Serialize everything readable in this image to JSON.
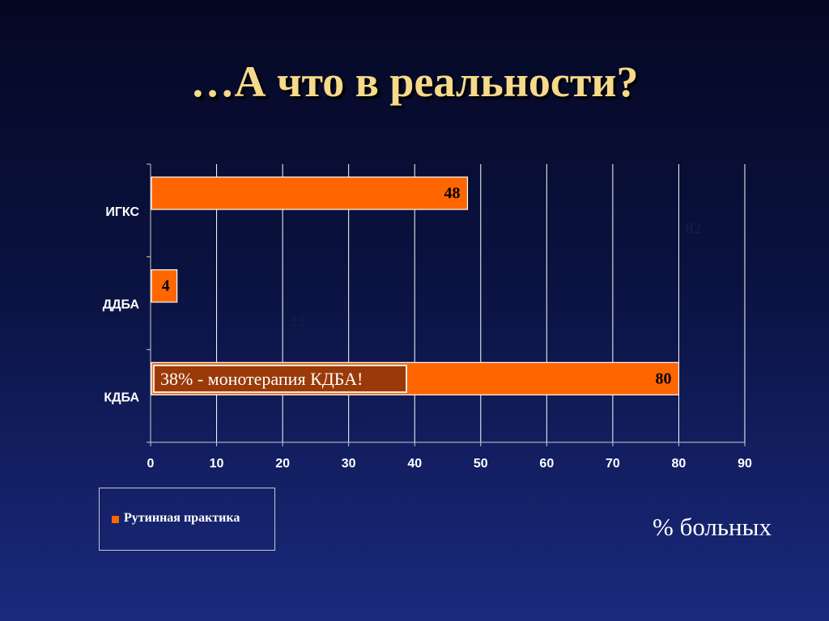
{
  "title": "…А что в реальности?",
  "chart_data": {
    "type": "bar",
    "orientation": "horizontal",
    "categories": [
      "ИГКС",
      "ДДБА",
      "КДБА"
    ],
    "series": [
      {
        "name": "Рутинная практика",
        "values": [
          48,
          4,
          80
        ],
        "color": "#ff6600"
      }
    ],
    "hidden_values": [
      82,
      22,
      31
    ],
    "xlim": [
      0,
      90
    ],
    "xticks": [
      0,
      10,
      20,
      30,
      40,
      50,
      60,
      70,
      80,
      90
    ],
    "xlabel": "% больных",
    "grid": true,
    "legend_position": "bottom-left",
    "annotation": "38% - монотерапия КДБА!"
  },
  "colors": {
    "title": "#f6d98a",
    "bar": "#ff6600",
    "grid": "#ffffff",
    "hidden_label": "#141a4a"
  }
}
